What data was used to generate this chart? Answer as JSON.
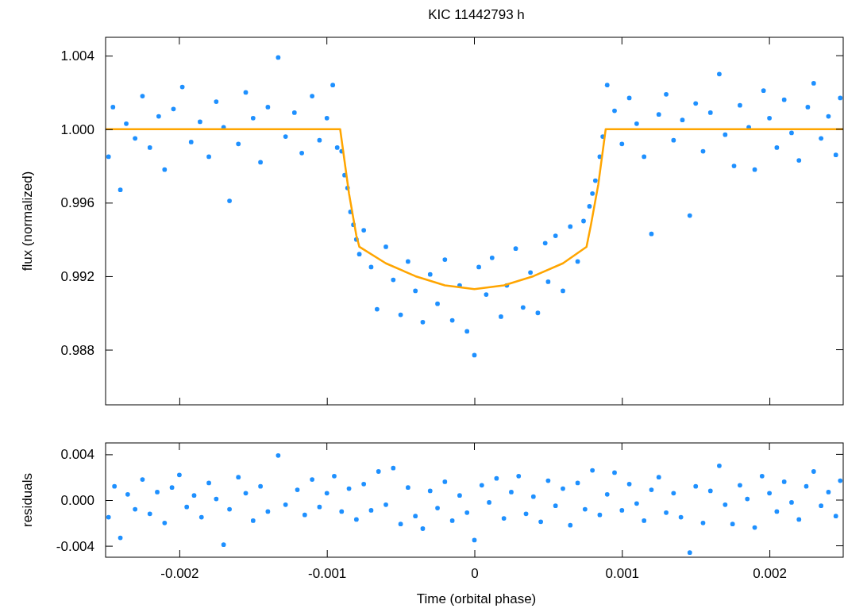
{
  "chart_data": [
    {
      "type": "scatter",
      "title": "KIC 11442793 h",
      "ylabel": "flux (normalized)",
      "xlim": [
        -0.0025,
        0.0025
      ],
      "xticks": [
        -0.002,
        -0.001,
        0,
        0.001,
        0.002
      ],
      "ylim": [
        0.985,
        1.005
      ],
      "yticks": [
        1.004,
        {
          "value": 1,
          "label": "1.000"
        },
        0.996,
        0.992,
        0.988
      ],
      "tick_labels": "y",
      "series": [
        {
          "marker": "circle",
          "color": "#1e90ff",
          "x": [
            -0.00248,
            -0.00245,
            -0.0024,
            -0.00236,
            -0.0023,
            -0.00225,
            -0.0022,
            -0.00214,
            -0.0021,
            -0.00204,
            -0.00198,
            -0.00192,
            -0.00186,
            -0.0018,
            -0.00175,
            -0.0017,
            -0.00166,
            -0.0016,
            -0.00155,
            -0.0015,
            -0.00145,
            -0.0014,
            -0.00133,
            -0.00128,
            -0.00122,
            -0.00117,
            -0.0011,
            -0.00105,
            -0.001,
            -0.00096,
            -0.00093,
            -0.0009,
            -0.00088,
            -0.00086,
            -0.00084,
            -0.00082,
            -0.0008,
            -0.00078,
            -0.00075,
            -0.0007,
            -0.00066,
            -0.0006,
            -0.00055,
            -0.0005,
            -0.00045,
            -0.0004,
            -0.00035,
            -0.0003,
            -0.00025,
            -0.0002,
            -0.00015,
            -0.0001,
            -5e-05,
            0,
            3e-05,
            8e-05,
            0.00012,
            0.00018,
            0.00022,
            0.00028,
            0.00033,
            0.00038,
            0.00043,
            0.00048,
            0.0005,
            0.00055,
            0.0006,
            0.00065,
            0.0007,
            0.00074,
            0.00078,
            0.0008,
            0.00082,
            0.00085,
            0.00087,
            0.0009,
            0.00095,
            0.001,
            0.00105,
            0.0011,
            0.00115,
            0.0012,
            0.00125,
            0.0013,
            0.00135,
            0.00141,
            0.00146,
            0.0015,
            0.00155,
            0.0016,
            0.00166,
            0.0017,
            0.00176,
            0.0018,
            0.00186,
            0.0019,
            0.00196,
            0.002,
            0.00205,
            0.0021,
            0.00215,
            0.0022,
            0.00226,
            0.0023,
            0.00235,
            0.0024,
            0.00245,
            0.00248
          ],
          "values": [
            0.9985,
            1.0012,
            0.9967,
            1.0003,
            0.9995,
            1.0018,
            0.999,
            1.0007,
            0.9978,
            1.0011,
            1.0023,
            0.9993,
            1.0004,
            0.9985,
            1.0015,
            1.0001,
            0.9961,
            0.9992,
            1.002,
            1.0006,
            0.9982,
            1.0012,
            1.0039,
            0.9996,
            1.0009,
            0.9987,
            1.0018,
            0.9994,
            1.0006,
            1.0024,
            0.999,
            0.9988,
            0.9975,
            0.9968,
            0.9955,
            0.9948,
            0.994,
            0.9932,
            0.9945,
            0.9925,
            0.9902,
            0.9936,
            0.9918,
            0.9899,
            0.9928,
            0.9912,
            0.9895,
            0.9921,
            0.9905,
            0.9929,
            0.9896,
            0.9915,
            0.989,
            0.9877,
            0.9925,
            0.991,
            0.993,
            0.9898,
            0.9915,
            0.9935,
            0.9903,
            0.9922,
            0.99,
            0.9938,
            0.9917,
            0.9942,
            0.9912,
            0.9947,
            0.9928,
            0.995,
            0.9958,
            0.9965,
            0.9972,
            0.9985,
            0.9996,
            1.0024,
            1.001,
            0.9992,
            1.0017,
            1.0003,
            0.9985,
            0.9943,
            1.0008,
            1.0019,
            0.9994,
            1.0005,
            0.9953,
            1.0014,
            0.9988,
            1.0009,
            1.003,
            0.9997,
            0.998,
            1.0013,
            1.0001,
            0.9978,
            1.0021,
            1.0006,
            0.999,
            1.0016,
            0.9998,
            0.9983,
            1.0012,
            1.0025,
            0.9995,
            1.0007,
            0.9986,
            1.0017
          ]
        },
        {
          "type": "line",
          "marker": "none",
          "color": "#ffa500",
          "x": [
            -0.0025,
            -0.00091,
            -0.00085,
            -0.0008,
            -0.00078,
            -0.0006,
            -0.0004,
            -0.0002,
            0,
            0.0002,
            0.0004,
            0.0006,
            0.00076,
            0.00079,
            0.00084,
            0.00089,
            0.0025
          ],
          "values": [
            1.0,
            1.0,
            0.9965,
            0.9942,
            0.9936,
            0.9927,
            0.992,
            0.9915,
            0.9913,
            0.9915,
            0.992,
            0.9927,
            0.9936,
            0.9948,
            0.997,
            1.0,
            1.0
          ]
        }
      ]
    },
    {
      "type": "scatter",
      "xlabel": "Time (orbital phase)",
      "ylabel": "residuals",
      "xlim": [
        -0.0025,
        0.0025
      ],
      "xticks": [
        -0.002,
        -0.001,
        0,
        0.001,
        0.002
      ],
      "ylim": [
        -0.005,
        0.005
      ],
      "yticks": [
        {
          "value": 0.004,
          "label": "0.004"
        },
        {
          "value": 0,
          "label": "0.000"
        },
        {
          "value": -0.004,
          "label": "-0.004"
        }
      ],
      "series": [
        {
          "marker": "circle",
          "color": "#1e90ff",
          "x": [
            -0.00248,
            -0.00244,
            -0.0024,
            -0.00235,
            -0.0023,
            -0.00225,
            -0.0022,
            -0.00215,
            -0.0021,
            -0.00205,
            -0.002,
            -0.00195,
            -0.0019,
            -0.00185,
            -0.0018,
            -0.00175,
            -0.0017,
            -0.00166,
            -0.0016,
            -0.00155,
            -0.0015,
            -0.00145,
            -0.0014,
            -0.00133,
            -0.00128,
            -0.0012,
            -0.00115,
            -0.0011,
            -0.00105,
            -0.001,
            -0.00095,
            -0.0009,
            -0.00085,
            -0.0008,
            -0.00075,
            -0.0007,
            -0.00065,
            -0.0006,
            -0.00055,
            -0.0005,
            -0.00045,
            -0.0004,
            -0.00035,
            -0.0003,
            -0.00025,
            -0.0002,
            -0.00015,
            -0.0001,
            -5e-05,
            0,
            5e-05,
            0.0001,
            0.00015,
            0.0002,
            0.00025,
            0.0003,
            0.00035,
            0.0004,
            0.00045,
            0.0005,
            0.00055,
            0.0006,
            0.00065,
            0.0007,
            0.00075,
            0.0008,
            0.00085,
            0.0009,
            0.00095,
            0.001,
            0.00105,
            0.0011,
            0.00115,
            0.0012,
            0.00125,
            0.0013,
            0.00135,
            0.0014,
            0.00146,
            0.0015,
            0.00155,
            0.0016,
            0.00166,
            0.0017,
            0.00175,
            0.0018,
            0.00185,
            0.0019,
            0.00195,
            0.002,
            0.00205,
            0.0021,
            0.00215,
            0.0022,
            0.00225,
            0.0023,
            0.00235,
            0.0024,
            0.00245,
            0.00248
          ],
          "values": [
            -0.0015,
            0.0012,
            -0.0033,
            0.0005,
            -0.0008,
            0.0018,
            -0.0012,
            0.0007,
            -0.002,
            0.0011,
            0.0022,
            -0.0006,
            0.0004,
            -0.0015,
            0.0015,
            0.0001,
            -0.0039,
            -0.0008,
            0.002,
            0.0006,
            -0.0018,
            0.0012,
            -0.001,
            0.0039,
            -0.0004,
            0.0009,
            -0.0013,
            0.0018,
            -0.0006,
            0.0006,
            0.0021,
            -0.001,
            0.001,
            -0.0017,
            0.0014,
            -0.0009,
            0.0025,
            -0.0004,
            0.0028,
            -0.0021,
            0.0011,
            -0.0014,
            -0.0025,
            0.0008,
            -0.0007,
            0.0016,
            -0.0018,
            0.0004,
            -0.0011,
            -0.0035,
            0.0013,
            -0.0002,
            0.0019,
            -0.0016,
            0.0007,
            0.0021,
            -0.0012,
            0.0003,
            -0.0019,
            0.0017,
            -0.0005,
            0.001,
            -0.0022,
            0.0015,
            -0.0008,
            0.0026,
            -0.0013,
            0.0005,
            0.0024,
            -0.0009,
            0.0014,
            -0.0003,
            -0.0018,
            0.0009,
            0.002,
            -0.0011,
            0.0006,
            -0.0015,
            -0.0046,
            0.0012,
            -0.002,
            0.0008,
            0.003,
            -0.0004,
            -0.0021,
            0.0013,
            0.0001,
            -0.0024,
            0.0021,
            0.0006,
            -0.001,
            0.0016,
            -0.0002,
            -0.0017,
            0.0012,
            0.0025,
            -0.0005,
            0.0007,
            -0.0014,
            0.0017
          ]
        }
      ]
    }
  ]
}
